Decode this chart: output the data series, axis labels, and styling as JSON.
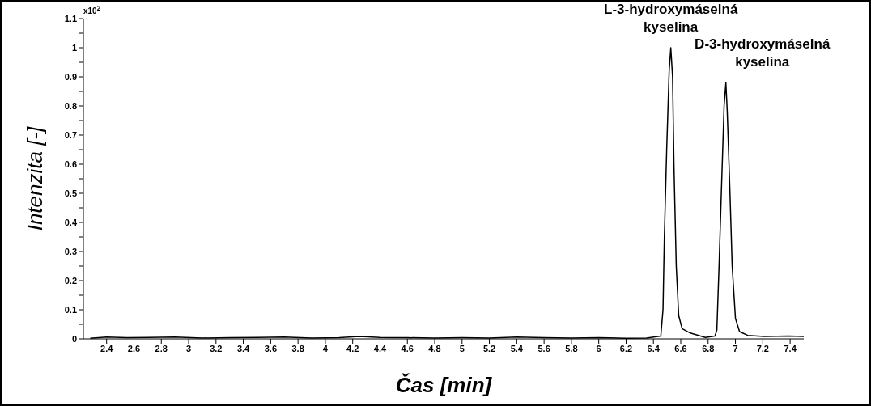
{
  "chart_data": {
    "type": "line",
    "xlabel": "Čas [min]",
    "ylabel": "Intenzita [-]",
    "x": [
      2.28,
      2.4,
      2.55,
      2.7,
      2.9,
      3.1,
      3.3,
      3.5,
      3.7,
      3.9,
      4.1,
      4.25,
      4.4,
      4.6,
      4.8,
      5.0,
      5.2,
      5.4,
      5.6,
      5.8,
      6.0,
      6.2,
      6.35,
      6.454,
      6.47,
      6.48,
      6.497,
      6.515,
      6.527,
      6.54,
      6.55,
      6.567,
      6.585,
      6.61,
      6.67,
      6.73,
      6.78,
      6.85,
      6.864,
      6.88,
      6.9,
      6.917,
      6.93,
      6.94,
      6.96,
      6.976,
      7.0,
      7.03,
      7.09,
      7.21,
      7.39,
      7.5
    ],
    "series": [
      {
        "color": "#000000",
        "values": [
          0.002,
          0.006,
          0.004,
          0.005,
          0.006,
          0.003,
          0.004,
          0.005,
          0.006,
          0.003,
          0.004,
          0.008,
          0.005,
          0.004,
          0.003,
          0.004,
          0.003,
          0.006,
          0.004,
          0.003,
          0.004,
          0.002,
          0.003,
          0.01,
          0.1,
          0.35,
          0.65,
          0.92,
          1.0,
          0.9,
          0.6,
          0.25,
          0.08,
          0.035,
          0.02,
          0.012,
          0.005,
          0.01,
          0.03,
          0.25,
          0.55,
          0.8,
          0.88,
          0.78,
          0.5,
          0.25,
          0.07,
          0.025,
          0.012,
          0.008,
          0.01,
          0.008
        ]
      }
    ],
    "xlim": [
      2.23,
      7.5
    ],
    "xticks": [
      2.4,
      2.6,
      2.8,
      3,
      3.2,
      3.4,
      3.6,
      3.8,
      4,
      4.2,
      4.4,
      4.6,
      4.8,
      5,
      5.2,
      5.4,
      5.6,
      5.8,
      6,
      6.2,
      6.4,
      6.6,
      6.8,
      7,
      7.2,
      7.4
    ],
    "ylim": [
      0,
      1.1
    ],
    "yticks": [
      0,
      {
        "value": 0.05,
        "label": null
      },
      0.1,
      {
        "value": 0.15,
        "label": null
      },
      0.2,
      {
        "value": 0.25,
        "label": null
      },
      0.3,
      {
        "value": 0.35,
        "label": null
      },
      0.4,
      {
        "value": 0.45,
        "label": null
      },
      0.5,
      {
        "value": 0.55,
        "label": null
      },
      0.6,
      {
        "value": 0.65,
        "label": null
      },
      0.7,
      {
        "value": 0.75,
        "label": null
      },
      0.8,
      {
        "value": 0.85,
        "label": null
      },
      0.9,
      {
        "value": 0.95,
        "label": null
      },
      1,
      {
        "value": 1.05,
        "label": null
      },
      1.1
    ],
    "grid": false,
    "legend": false,
    "marker": "none",
    "line_style": "solid",
    "annotations": [
      "x10$^{2}$",
      {
        "text": "L-3-hydroxymáselná kyselina",
        "x": 6.527,
        "y": 1.0
      },
      {
        "text": "D-3-hydroxymáselná kyselina",
        "x": 6.93,
        "y": 0.88
      }
    ]
  }
}
